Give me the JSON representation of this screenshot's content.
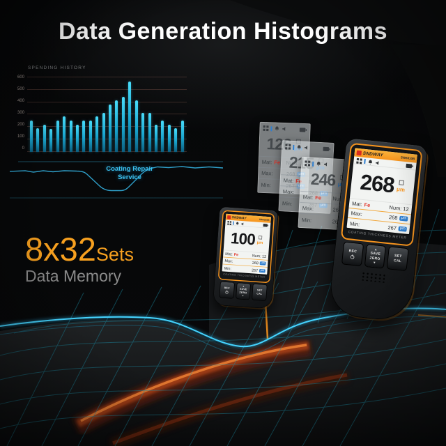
{
  "title": "Data Generation Histograms",
  "chart_data": {
    "type": "bar",
    "title": "SPENDING HISTORY",
    "categories": [],
    "values": [
      250,
      190,
      215,
      185,
      250,
      285,
      250,
      215,
      250,
      250,
      285,
      310,
      380,
      410,
      440,
      560,
      410,
      310,
      310,
      215,
      250,
      215,
      190,
      250
    ],
    "xlabel": "",
    "ylabel": "",
    "ylim": [
      0,
      600
    ],
    "yticks": [
      600,
      500,
      400,
      300,
      200,
      100,
      0
    ],
    "grid": true,
    "legend": false,
    "bar_color": "#36cdf2",
    "annotation": "Coating Repair Service"
  },
  "callout": {
    "line1": "Coating Repair",
    "line2": "Service"
  },
  "memory": {
    "value": "8x32",
    "unit": "Sets",
    "label": "Data Memory"
  },
  "icons": {
    "arrow_up": "▲",
    "arrow_down": "▼"
  },
  "ghosts": [
    {
      "reading": "126",
      "unit": "μm",
      "mat_label": "Mat:",
      "mat_value": "Fe",
      "num_label": "Num:",
      "num_value": "12",
      "max_label": "Max:",
      "max_value": "268",
      "max_unit": "μm",
      "min_label": "Min:",
      "min_value": "267",
      "min_unit": "μm"
    },
    {
      "reading": "215",
      "unit": "μm",
      "mat_label": "Mat:",
      "mat_value": "Fe",
      "num_label": "Num:",
      "num_value": "12",
      "max_label": "Max:",
      "max_value": "268",
      "max_unit": "μm",
      "min_label": "Min:",
      "min_value": "267",
      "min_unit": "μm"
    },
    {
      "reading": "246",
      "unit": "μm",
      "mat_label": "Mat:",
      "mat_value": "Fe",
      "num_label": "Num:",
      "num_value": "12",
      "max_label": "Max:",
      "max_value": "268",
      "max_unit": "μm",
      "min_label": "Min:",
      "min_value": "267",
      "min_unit": "μm"
    }
  ],
  "small_device": {
    "brand": "SNDWAY",
    "model": "SW6310B",
    "reading": "100",
    "unit": "μm",
    "mat_label": "Mat:",
    "mat_value": "Fe",
    "num_label": "Num:",
    "num_value": "12",
    "max_label": "Max:",
    "max_value": "268",
    "max_unit": "μm",
    "min_label": "Min:",
    "min_value": "267",
    "min_unit": "μm",
    "meter_label": "COATING THICKNESS METER",
    "btn_rec": "REC",
    "btn_save": "SAVE",
    "btn_zero": "ZERO",
    "btn_set": "SET",
    "btn_cal": "CAL"
  },
  "large_device": {
    "brand": "SNDWAY",
    "model": "SW6310B",
    "reading": "268",
    "unit": "μm",
    "mat_label": "Mat:",
    "mat_value": "Fe",
    "num_label": "Num:",
    "num_value": "12",
    "max_label": "Max:",
    "max_value": "268",
    "max_unit": "μm",
    "min_label": "Min:",
    "min_value": "267",
    "min_unit": "μm",
    "meter_label": "COATING THICKNESS METER",
    "btn_rec": "REC",
    "btn_save": "SAVE",
    "btn_zero": "ZERO",
    "btn_set": "SET",
    "btn_cal": "CAL"
  }
}
